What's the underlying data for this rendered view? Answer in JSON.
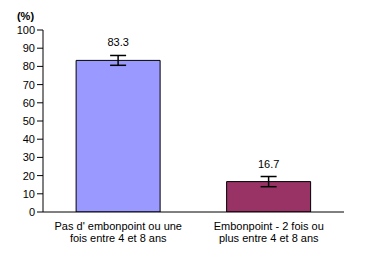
{
  "chart_data": {
    "type": "bar",
    "y_label": "(%)",
    "categories": [
      "Pas d' embonpoint ou une fois entre 4 et 8 ans",
      "Embonpoint - 2 fois ou plus entre 4 et 8 ans"
    ],
    "values": [
      83.3,
      16.7
    ],
    "error": [
      2.7,
      2.8
    ],
    "colors": [
      "#9999ff",
      "#993366"
    ],
    "ylim": [
      0,
      100
    ],
    "yticks": [
      0,
      10,
      20,
      30,
      40,
      50,
      60,
      70,
      80,
      90,
      100
    ],
    "grid": false,
    "data_labels": true
  }
}
